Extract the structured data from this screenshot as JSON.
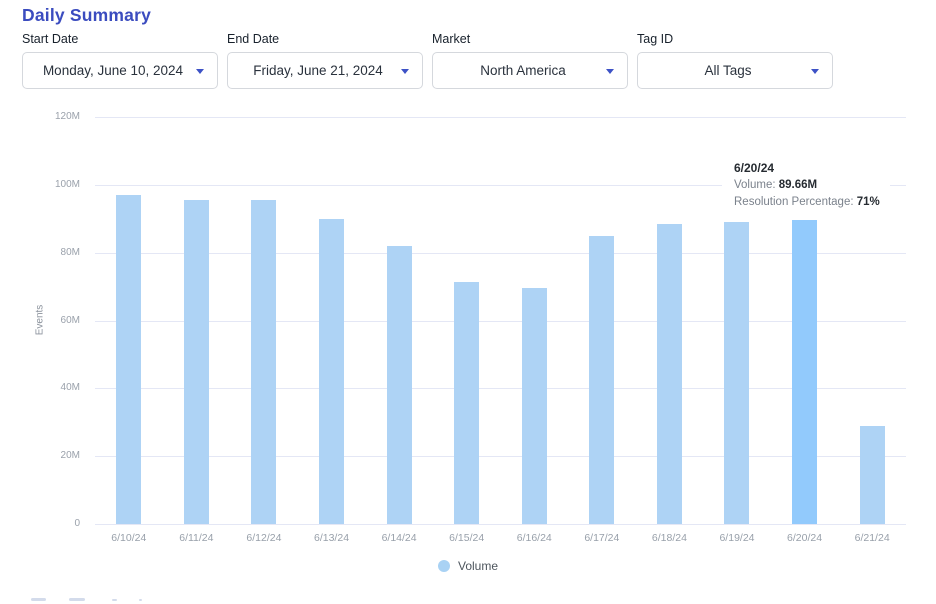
{
  "page": {
    "title": "Daily Summary"
  },
  "colors": {
    "accent": "#3b4cbf",
    "bar": "#aed3f5",
    "bar_highlight": "#92cafc",
    "gridline": "#e4e7f5",
    "caret": "#3d52c6",
    "legend_dot": "#a9d2f4"
  },
  "filters": [
    {
      "id": "start-date",
      "label": "Start Date",
      "value": "Monday, June 10, 2024"
    },
    {
      "id": "end-date",
      "label": "End Date",
      "value": "Friday, June 21, 2024"
    },
    {
      "id": "market",
      "label": "Market",
      "value": "North America"
    },
    {
      "id": "tag-id",
      "label": "Tag ID",
      "value": "All Tags"
    }
  ],
  "chart_data": {
    "type": "bar",
    "title": "Daily Summary",
    "xlabel": "",
    "ylabel": "Events",
    "ylim_millions": [
      0,
      120
    ],
    "yticks_millions": [
      0,
      20,
      40,
      60,
      80,
      100,
      120
    ],
    "ytick_suffix": "M",
    "grid": true,
    "legend_position": "bottom",
    "categories": [
      "6/10/24",
      "6/11/24",
      "6/12/24",
      "6/13/24",
      "6/14/24",
      "6/15/24",
      "6/16/24",
      "6/17/24",
      "6/18/24",
      "6/19/24",
      "6/20/24",
      "6/21/24"
    ],
    "series": [
      {
        "name": "Volume",
        "values_millions": [
          97,
          95.5,
          95.5,
          90,
          82,
          71.5,
          69.5,
          85,
          88.5,
          89,
          89.66,
          29
        ]
      }
    ],
    "highlighted_index": 10,
    "highlighted_point": {
      "date": "6/20/24",
      "volume": "89.66M",
      "resolution_percentage": "71%"
    }
  },
  "tooltip": {
    "date": "6/20/24",
    "volume_label": "Volume:",
    "volume_value": "89.66M",
    "resolution_label": "Resolution Percentage:",
    "resolution_value": "71%"
  },
  "legend": {
    "label": "Volume"
  }
}
